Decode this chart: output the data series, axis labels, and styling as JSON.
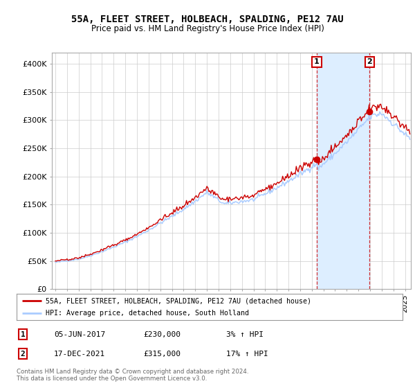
{
  "title": "55A, FLEET STREET, HOLBEACH, SPALDING, PE12 7AU",
  "subtitle": "Price paid vs. HM Land Registry's House Price Index (HPI)",
  "ylabel_ticks": [
    "£0",
    "£50K",
    "£100K",
    "£150K",
    "£200K",
    "£250K",
    "£300K",
    "£350K",
    "£400K"
  ],
  "ytick_values": [
    0,
    50000,
    100000,
    150000,
    200000,
    250000,
    300000,
    350000,
    400000
  ],
  "ylim": [
    0,
    420000
  ],
  "xlim_start": 1994.7,
  "xlim_end": 2025.5,
  "hpi_color": "#aaccff",
  "price_color": "#cc0000",
  "sale1_date": 2017.43,
  "sale1_price": 230000,
  "sale2_date": 2021.96,
  "sale2_price": 315000,
  "legend_line1": "55A, FLEET STREET, HOLBEACH, SPALDING, PE12 7AU (detached house)",
  "legend_line2": "HPI: Average price, detached house, South Holland",
  "annotation1_date": "05-JUN-2017",
  "annotation1_price": "£230,000",
  "annotation1_pct": "3% ↑ HPI",
  "annotation2_date": "17-DEC-2021",
  "annotation2_price": "£315,000",
  "annotation2_pct": "17% ↑ HPI",
  "footer": "Contains HM Land Registry data © Crown copyright and database right 2024.\nThis data is licensed under the Open Government Licence v3.0.",
  "background_color": "#ffffff",
  "grid_color": "#cccccc",
  "shade_color": "#ddeeff"
}
